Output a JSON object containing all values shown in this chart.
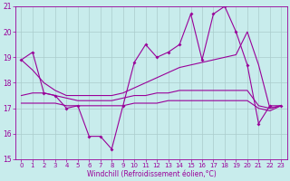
{
  "xlabel": "Windchill (Refroidissement éolien,°C)",
  "background_color": "#c8ecec",
  "grid_color": "#aacccc",
  "line_color": "#990099",
  "xlim": [
    -0.5,
    23.5
  ],
  "ylim": [
    15,
    21
  ],
  "yticks": [
    15,
    16,
    17,
    18,
    19,
    20,
    21
  ],
  "xticks": [
    0,
    1,
    2,
    3,
    4,
    5,
    6,
    7,
    8,
    9,
    10,
    11,
    12,
    13,
    14,
    15,
    16,
    17,
    18,
    19,
    20,
    21,
    22,
    23
  ],
  "series": {
    "line1_jagged": {
      "x": [
        0,
        1,
        2,
        3,
        4,
        5,
        6,
        7,
        8,
        9,
        10,
        11,
        12,
        13,
        14,
        15,
        16,
        17,
        18,
        19,
        20,
        21,
        22,
        23
      ],
      "y": [
        18.9,
        19.2,
        17.6,
        17.5,
        17.0,
        17.1,
        15.9,
        15.9,
        15.4,
        17.1,
        18.8,
        19.5,
        19.0,
        19.2,
        19.5,
        20.7,
        18.9,
        20.7,
        21.0,
        20.0,
        18.7,
        16.4,
        17.1,
        17.1
      ]
    },
    "line2_upper_trend": {
      "x": [
        0,
        1,
        2,
        3,
        4,
        5,
        6,
        7,
        8,
        9,
        10,
        11,
        12,
        13,
        14,
        15,
        16,
        17,
        18,
        19,
        20,
        21,
        22,
        23
      ],
      "y": [
        18.9,
        18.5,
        18.0,
        17.7,
        17.5,
        17.5,
        17.5,
        17.5,
        17.5,
        17.6,
        17.8,
        18.0,
        18.2,
        18.4,
        18.6,
        18.7,
        18.8,
        18.9,
        19.0,
        19.1,
        20.0,
        18.7,
        17.0,
        17.1
      ]
    },
    "line3_mid_trend": {
      "x": [
        0,
        1,
        2,
        3,
        4,
        5,
        6,
        7,
        8,
        9,
        10,
        11,
        12,
        13,
        14,
        15,
        16,
        17,
        18,
        19,
        20,
        21,
        22,
        23
      ],
      "y": [
        17.5,
        17.6,
        17.6,
        17.5,
        17.4,
        17.3,
        17.3,
        17.3,
        17.3,
        17.4,
        17.5,
        17.5,
        17.6,
        17.6,
        17.7,
        17.7,
        17.7,
        17.7,
        17.7,
        17.7,
        17.7,
        17.1,
        17.0,
        17.1
      ]
    },
    "line4_lower_trend": {
      "x": [
        0,
        1,
        2,
        3,
        4,
        5,
        6,
        7,
        8,
        9,
        10,
        11,
        12,
        13,
        14,
        15,
        16,
        17,
        18,
        19,
        20,
        21,
        22,
        23
      ],
      "y": [
        17.2,
        17.2,
        17.2,
        17.2,
        17.1,
        17.1,
        17.1,
        17.1,
        17.1,
        17.1,
        17.2,
        17.2,
        17.2,
        17.3,
        17.3,
        17.3,
        17.3,
        17.3,
        17.3,
        17.3,
        17.3,
        17.0,
        16.9,
        17.1
      ]
    }
  }
}
